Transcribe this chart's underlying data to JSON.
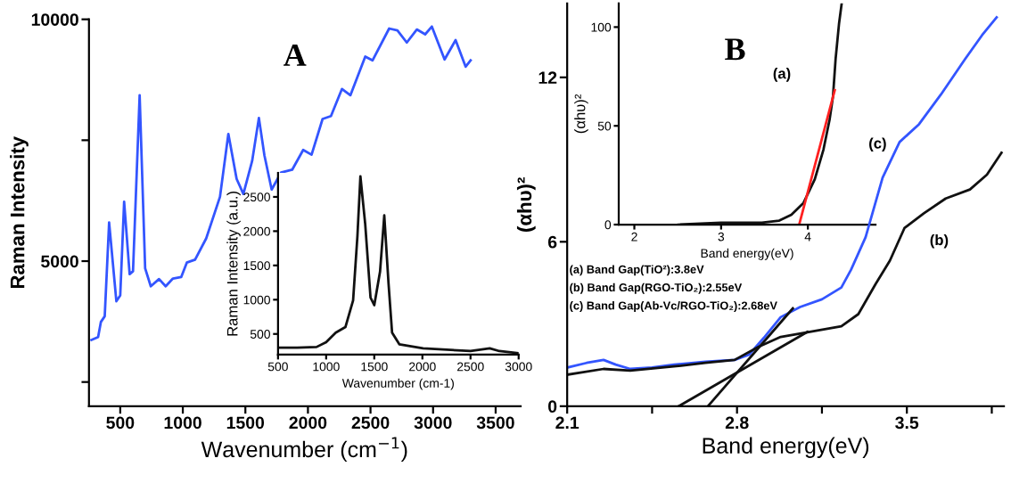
{
  "chart_data": [
    {
      "type": "line",
      "title": "A",
      "xlabel": "Wavenumber (cm$^{−1}$)",
      "ylabel": "Raman Intensity",
      "x": [
        270,
        323,
        345,
        376,
        411,
        469,
        500,
        531,
        575,
        602,
        655,
        699,
        744,
        810,
        863,
        921,
        987,
        1032,
        1098,
        1187,
        1297,
        1364,
        1430,
        1484,
        1554,
        1608,
        1652,
        1710,
        1785,
        1874,
        1962,
        2029,
        2117,
        2184,
        2272,
        2339,
        2458,
        2516,
        2649,
        2715,
        2790,
        2870,
        2937,
        2990,
        3092,
        3180,
        3260,
        3300
      ],
      "series": [
        {
          "color": "#3355ff",
          "values": [
            3370,
            3430,
            3740,
            3860,
            5800,
            4170,
            4290,
            6230,
            4730,
            4790,
            8430,
            4850,
            4480,
            4630,
            4480,
            4640,
            4670,
            4970,
            5030,
            5470,
            6330,
            7630,
            6700,
            6390,
            7070,
            7960,
            7190,
            6480,
            6830,
            6890,
            7300,
            7200,
            7940,
            8000,
            8560,
            8430,
            9230,
            9150,
            9810,
            9770,
            9520,
            9790,
            9690,
            9850,
            9170,
            9570,
            9020,
            9150
          ]
        }
      ],
      "xlim": [
        250,
        3700
      ],
      "xticks": [
        500,
        1000,
        1500,
        2000,
        2500,
        3000,
        3500
      ],
      "ylim": [
        2000,
        10000
      ],
      "yticks": [
        {
          "value": 2500,
          "label": null
        },
        5000,
        {
          "value": 7500,
          "label": null
        },
        10000
      ],
      "grid": false,
      "legend": false
    },
    {
      "type": "line",
      "xlabel": "Wavenumber (cm-1)",
      "ylabel": "Raman Intensity (a.u.)",
      "x": [
        500,
        700,
        900,
        1000,
        1100,
        1200,
        1280,
        1325,
        1356,
        1406,
        1461,
        1500,
        1560,
        1604,
        1648,
        1685,
        1760,
        2007,
        2500,
        2700,
        2800,
        3000
      ],
      "series": [
        {
          "color": "#111111",
          "values": [
            300,
            300,
            310,
            380,
            520,
            600,
            990,
            1930,
            2800,
            2100,
            1030,
            920,
            1410,
            2230,
            1240,
            520,
            350,
            290,
            250,
            290,
            250,
            220
          ]
        }
      ],
      "xlim": [
        500,
        3000
      ],
      "xticks": [
        500,
        1000,
        1500,
        2000,
        2500,
        3000
      ],
      "ylim": [
        200,
        2850
      ],
      "yticks": [
        500,
        1000,
        1500,
        2000,
        2500
      ],
      "grid": false,
      "legend": false
    },
    {
      "type": "line",
      "title": "B",
      "xlabel": "Band energy(eV)",
      "ylabel": "(αhυ)²",
      "series": [
        {
          "color": "#3355ff",
          "x": [
            2.1,
            2.18,
            2.25,
            2.3,
            2.36,
            2.45,
            2.54,
            2.67,
            2.79,
            2.85,
            2.91,
            2.98,
            3.06,
            3.15,
            3.23,
            3.27,
            3.33,
            3.4,
            3.47,
            3.55,
            3.64,
            3.74,
            3.81,
            3.87
          ],
          "values": [
            1.41,
            1.58,
            1.69,
            1.52,
            1.36,
            1.41,
            1.52,
            1.62,
            1.69,
            1.88,
            2.49,
            3.25,
            3.62,
            3.9,
            4.33,
            4.98,
            6.17,
            8.34,
            9.64,
            10.29,
            11.37,
            12.67,
            13.54,
            14.19
          ]
        },
        {
          "color": "#111111",
          "x": [
            2.1,
            2.25,
            2.36,
            2.54,
            2.67,
            2.79,
            2.89,
            2.98,
            3.1,
            3.23,
            3.3,
            3.37,
            3.43,
            3.49,
            3.57,
            3.66,
            3.76,
            3.83,
            3.89
          ],
          "values": [
            1.15,
            1.36,
            1.3,
            1.45,
            1.58,
            1.69,
            2.17,
            2.53,
            2.71,
            2.92,
            3.36,
            4.44,
            5.31,
            6.5,
            7.04,
            7.58,
            7.91,
            8.45,
            9.25
          ]
        },
        {
          "color": "#111111",
          "x": [
            2.56,
            3.09
          ],
          "values": [
            0,
            2.71
          ]
        },
        {
          "color": "#111111",
          "x": [
            2.68,
            3.03
          ],
          "values": [
            0,
            3.57
          ]
        }
      ],
      "xlim": [
        2.1,
        3.9
      ],
      "xticks": [
        2.1,
        {
          "value": 2.45,
          "label": null
        },
        2.8,
        {
          "value": 3.15,
          "label": null
        },
        3.5,
        {
          "value": 3.85,
          "label": null
        }
      ],
      "ylim": [
        0,
        14.7
      ],
      "yticks": [
        0,
        6,
        12
      ],
      "annotations": [
        "(a) Band Gap(TiO²):3.8eV",
        "(b) Band Gap(RGO-TiO₂):2.55eV",
        "(c) Band Gap(Ab-Vc/RGO-TiO₂):2.68eV",
        "(c)",
        "(b)"
      ],
      "grid": false,
      "legend": false
    },
    {
      "type": "line",
      "xlabel": "Band energy(eV)",
      "ylabel": "(αhυ)²",
      "series": [
        {
          "color": "#111111",
          "x": [
            2.51,
            3.0,
            3.47,
            3.67,
            3.81,
            3.95,
            4.08,
            4.18,
            4.25,
            4.29,
            4.32,
            4.36,
            4.39
          ],
          "values": [
            0,
            1,
            1,
            2,
            5,
            11,
            23,
            38,
            53,
            65,
            84,
            102,
            112
          ]
        },
        {
          "color": "#ff2020",
          "x": [
            3.9,
            4.31
          ],
          "values": [
            0,
            68
          ]
        }
      ],
      "xlim": [
        1.82,
        4.78
      ],
      "xticks": [
        2,
        3,
        4
      ],
      "ylim": [
        0,
        112
      ],
      "yticks": [
        0,
        50,
        100
      ],
      "annotations": [
        "(a)"
      ],
      "grid": false,
      "legend": false
    }
  ]
}
